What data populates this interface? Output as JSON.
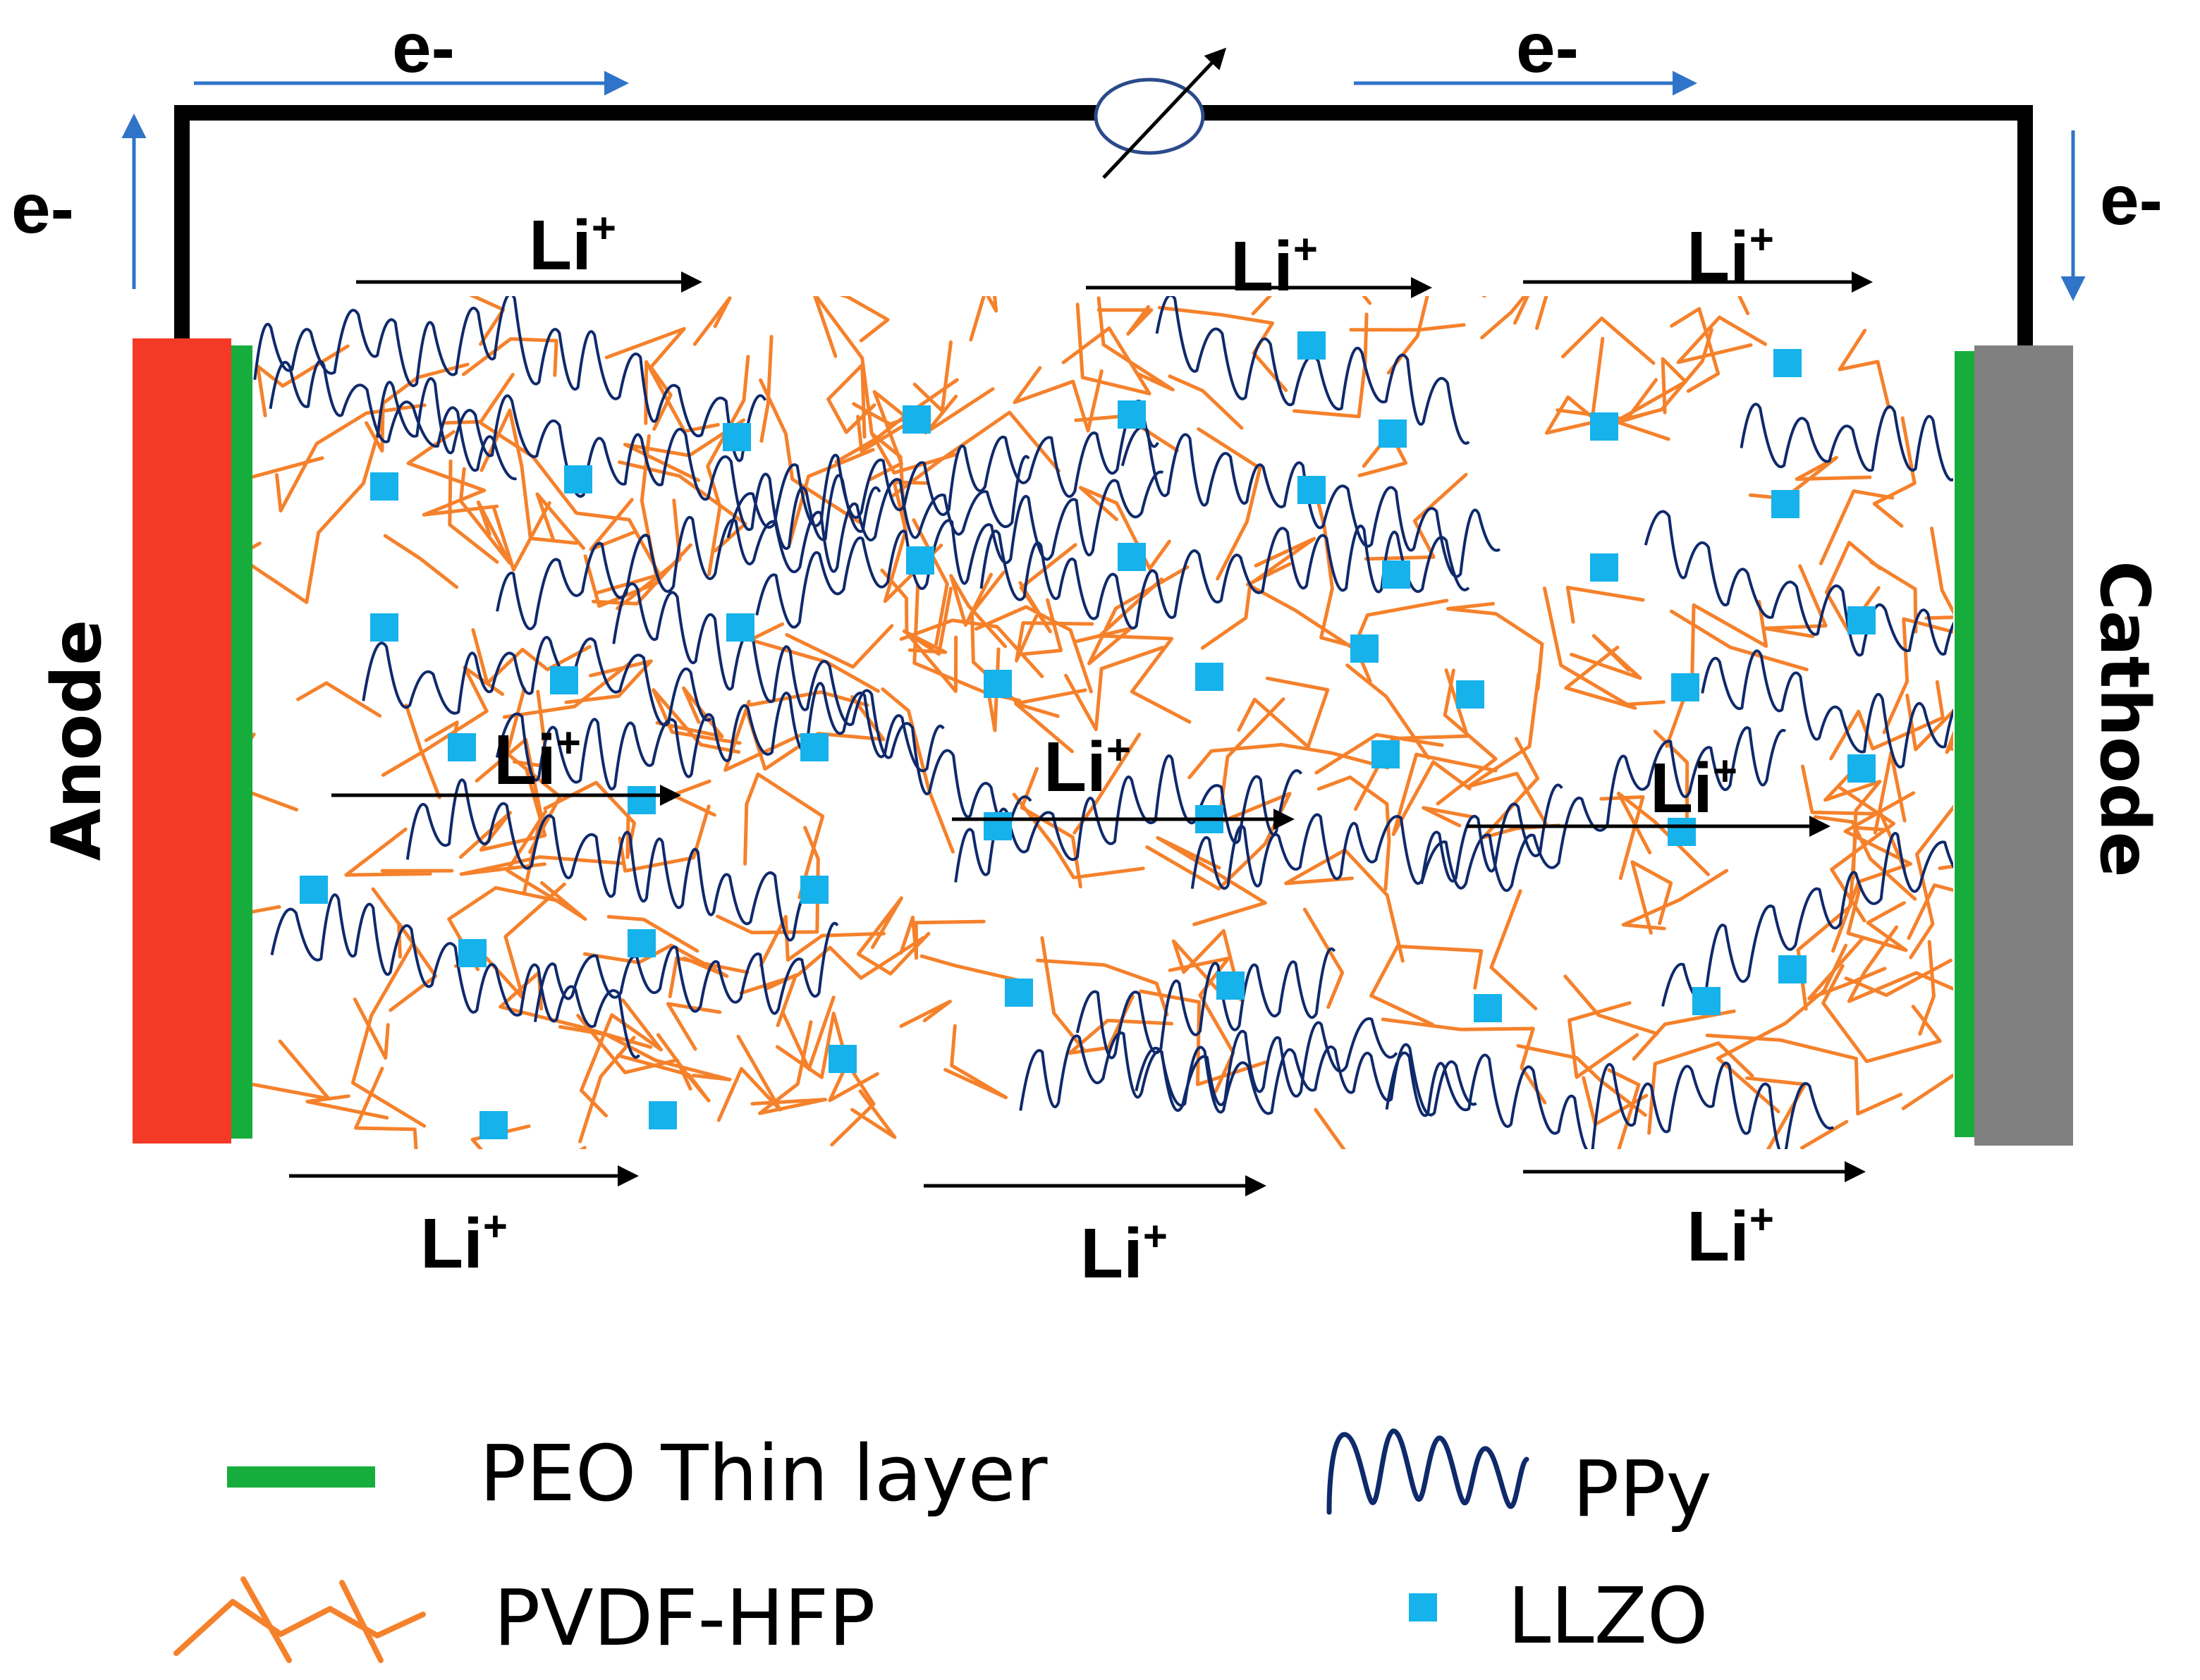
{
  "labels": {
    "electron": "e-",
    "lithium_base": "Li",
    "lithium_charge": "+",
    "anode": "Anode",
    "cathode": "Cathode"
  },
  "legend": {
    "peo": "PEO Thin layer",
    "pvdf": "PVDF-HFP",
    "ppy": "PPy",
    "llzo": "LLZO"
  },
  "colors": {
    "anode": "#f43a26",
    "cathode": "#808080",
    "peo_layer": "#17ad3c",
    "pvdf_hfp": "#f5812b",
    "ppy": "#0f2a6b",
    "llzo": "#16b2eb",
    "electron_arrow": "#2f74c8",
    "circuit": "#000000"
  }
}
